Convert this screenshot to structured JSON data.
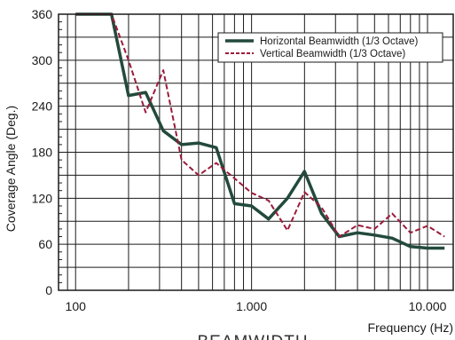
{
  "chart_data": {
    "type": "line",
    "xlabel": "Frequency (Hz)",
    "ylabel": "Coverage Angle (Deg.)",
    "x_scale": "log",
    "xlim": [
      80,
      14000
    ],
    "ylim": [
      0,
      360
    ],
    "y_ticks": [
      0,
      60,
      120,
      180,
      240,
      300,
      360
    ],
    "x_tick_labels": [
      {
        "value": 100,
        "label": "100"
      },
      {
        "value": 1000,
        "label": "1.000"
      },
      {
        "value": 10000,
        "label": "10.000"
      }
    ],
    "grid": true,
    "legend_position": "top-right",
    "caption": "BEAMWIDTH",
    "series": [
      {
        "name": "Horizontal Beamwidth (1/3 Octave)",
        "color": "#234a3c",
        "style": "solid",
        "x": [
          100,
          125,
          160,
          200,
          250,
          315,
          400,
          500,
          630,
          800,
          1000,
          1250,
          1600,
          2000,
          2500,
          3150,
          4000,
          5000,
          6300,
          8000,
          10000,
          12500
        ],
        "y": [
          360,
          360,
          360,
          254,
          258,
          208,
          190,
          192,
          186,
          113,
          110,
          93,
          120,
          155,
          100,
          70,
          75,
          72,
          68,
          57,
          55,
          55
        ]
      },
      {
        "name": "Vertical Beamwidth (1/3 Octave)",
        "color": "#9b1b3b",
        "style": "dotted",
        "x": [
          100,
          125,
          160,
          200,
          250,
          315,
          400,
          500,
          630,
          800,
          1000,
          1250,
          1600,
          2000,
          2500,
          3150,
          4000,
          5000,
          6300,
          8000,
          10000,
          12500
        ],
        "y": [
          360,
          360,
          360,
          300,
          232,
          287,
          170,
          150,
          166,
          146,
          127,
          117,
          78,
          128,
          108,
          70,
          85,
          80,
          100,
          75,
          84,
          70
        ]
      }
    ]
  }
}
